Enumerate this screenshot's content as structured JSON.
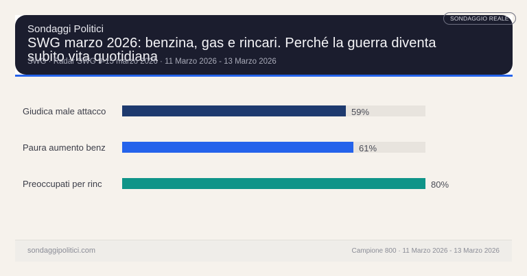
{
  "header": {
    "brand": "Sondaggi Politici",
    "title": "SWG marzo 2026: benzina, gas e rincari. Perché la guerra diventa subito vita quotidiana",
    "subtitle": "SWG · Radar SWG 9-15 marzo 2026 · 11 Marzo 2026 - 13 Marzo 2026",
    "badge": "Sondaggio reale"
  },
  "colors": {
    "background": "#f6f2ec",
    "header_bg": "#1b1d2e",
    "accent_line": "#2563eb",
    "track": "#e8e4de",
    "bar_1": "#1e3a6e",
    "bar_2": "#2563eb",
    "bar_3": "#0f9488"
  },
  "chart_data": {
    "type": "bar",
    "orientation": "horizontal",
    "title": "SWG marzo 2026: benzina, gas e rincari. Perché la guerra diventa subito vita quotidiana",
    "categories": [
      "Giudica male attacco",
      "Paura aumento benz",
      "Preoccupati per rinc"
    ],
    "values": [
      59,
      61,
      80
    ],
    "value_labels": [
      "59%",
      "61%",
      "80%"
    ],
    "unit": "%",
    "colors": [
      "#1e3a6e",
      "#2563eb",
      "#0f9488"
    ],
    "xlabel": "",
    "ylabel": "",
    "xlim": [
      0,
      80
    ],
    "grid": false,
    "legend": "none"
  },
  "footer": {
    "site": "sondaggipolitici.com",
    "meta": "Campione 800 · 11 Marzo 2026 - 13 Marzo 2026"
  }
}
